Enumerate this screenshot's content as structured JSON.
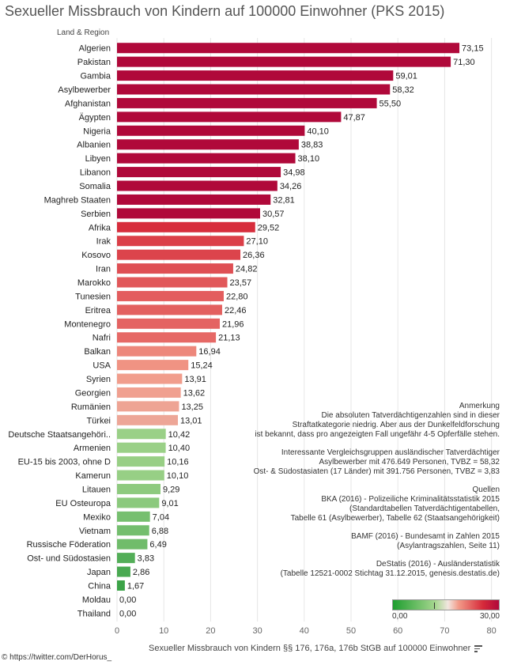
{
  "title": "Sexueller Missbrauch von Kindern auf 100000 Einwohner (PKS 2015)",
  "region_header": "Land & Region",
  "source": "© https://twitter.com/DerHorus_",
  "chart_data": {
    "type": "bar",
    "orientation": "horizontal",
    "title": "Sexueller Missbrauch von Kindern auf 100000 Einwohner (PKS 2015)",
    "xlabel": "Sexueller Missbrauch von Kindern §§ 176, 176a, 176b StGB auf 100000 Einwohner",
    "ylabel": "Land & Region",
    "xlim": [
      0,
      80
    ],
    "xticks": [
      "0",
      "10",
      "20",
      "30",
      "40",
      "50",
      "60",
      "70",
      "80"
    ],
    "grid": true,
    "categories": [
      "Algerien",
      "Pakistan",
      "Gambia",
      "Asylbewerber",
      "Afghanistan",
      "Ägypten",
      "Nigeria",
      "Albanien",
      "Libyen",
      "Libanon",
      "Somalia",
      "Maghreb Staaten",
      "Serbien",
      "Afrika",
      "Irak",
      "Kosovo",
      "Iran",
      "Marokko",
      "Tunesien",
      "Eritrea",
      "Montenegro",
      "Nafri",
      "Balkan",
      "USA",
      "Syrien",
      "Georgien",
      "Rumänien",
      "Türkei",
      "Deutsche Staatsangehöri..",
      "Armenien",
      "EU-15 bis 2003, ohne D",
      "Kamerun",
      "Litauen",
      "EU Osteuropa",
      "Mexiko",
      "Vietnam",
      "Russische Föderation",
      "Ost- und Südostasien",
      "Japan",
      "China",
      "Moldau",
      "Thailand"
    ],
    "values": [
      73.15,
      71.3,
      59.01,
      58.32,
      55.5,
      47.87,
      40.1,
      38.83,
      38.1,
      34.98,
      34.26,
      32.81,
      30.57,
      29.52,
      27.1,
      26.36,
      24.82,
      23.57,
      22.8,
      22.46,
      21.96,
      21.13,
      16.94,
      15.24,
      13.91,
      13.62,
      13.25,
      13.01,
      10.42,
      10.4,
      10.16,
      10.1,
      9.29,
      9.01,
      7.04,
      6.88,
      6.49,
      3.83,
      2.86,
      1.67,
      0.0,
      0.0
    ],
    "value_labels": [
      "73,15",
      "71,30",
      "59,01",
      "58,32",
      "55,50",
      "47,87",
      "40,10",
      "38,83",
      "38,10",
      "34,98",
      "34,26",
      "32,81",
      "30,57",
      "29,52",
      "27,10",
      "26,36",
      "24,82",
      "23,57",
      "22,80",
      "22,46",
      "21,96",
      "21,13",
      "16,94",
      "15,24",
      "13,91",
      "13,62",
      "13,25",
      "13,01",
      "10,42",
      "10,40",
      "10,16",
      "10,10",
      "9,29",
      "9,01",
      "7,04",
      "6,88",
      "6,49",
      "3,83",
      "2,86",
      "1,67",
      "0,00",
      "0,00"
    ],
    "color_scale": {
      "min_label": "0,00",
      "max_label": "30,00",
      "center": 11.5,
      "colors": {
        "green": "#2a9a3c",
        "light_green": "#a6d68f",
        "pink": "#e8b4a8",
        "red": "#d62a3a",
        "dark_red": "#b0093a"
      }
    }
  },
  "notes": {
    "anmerkung_title": "Anmerkung",
    "anmerkung_lines": [
      "Die absoluten Tatverdächtigenzahlen sind in dieser",
      "Straftatkategorie niedrig. Aber aus der Dunkelfeldforschung",
      "ist bekannt, dass pro angezeigten Fall ungefähr 4-5 Opferfälle stehen."
    ],
    "vergleich_lines": [
      "Interessante Vergleichsgruppen ausländischer Tatverdächtiger",
      "Asylbewerber mit 476.649 Personen, TVBZ = 58,32",
      "Ost- & Südostasiaten (17 Länder) mit 391.756 Personen, TVBZ = 3,83"
    ],
    "quellen_title": "Quellen",
    "bka_lines": [
      "BKA (2016) - Polizeiliche Kriminalitätsstatistik 2015",
      "(Standardtabellen Tatverdächtigentabellen,",
      "Tabelle 61 (Asylbewerber), Tabelle 62 (Staatsangehörigkeit)"
    ],
    "bamf_lines": [
      "BAMF (2016) - Bundesamt in Zahlen 2015",
      "(Asylantragszahlen, Seite 11)"
    ],
    "destatis_lines": [
      "DeStatis (2016) -  Ausländerstatistik",
      "(Tabelle 12521-0002 Stichtag 31.12.2015,  genesis.destatis.de)"
    ]
  }
}
